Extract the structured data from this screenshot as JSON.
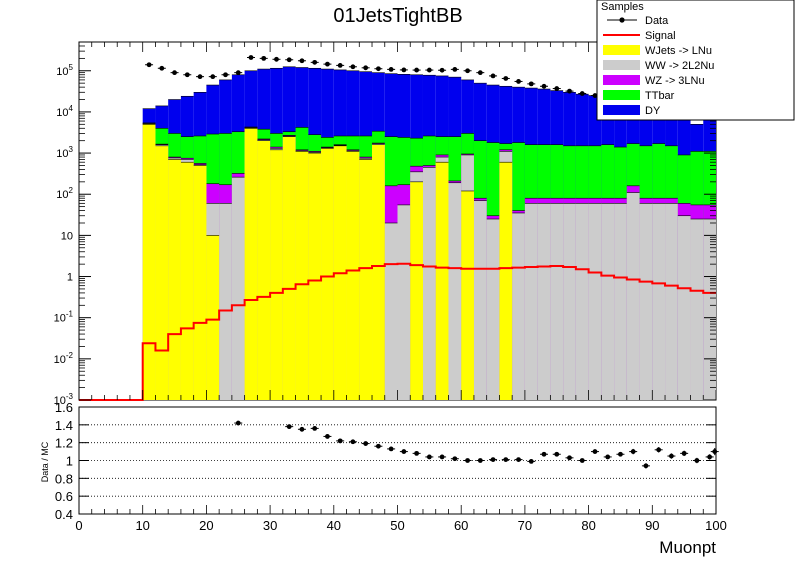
{
  "chart_data": [
    {
      "type": "stacked-histogram",
      "title": "01JetsTightBB",
      "xlabel": "",
      "ylabel": "",
      "log_y": true,
      "xlim": [
        0,
        100
      ],
      "ylim": [
        0.001,
        500000
      ],
      "bin_width": 2,
      "y_ticks": [
        {
          "v": 100000,
          "b": "10",
          "e": "5"
        },
        {
          "v": 10000,
          "b": "10",
          "e": "4"
        },
        {
          "v": 1000,
          "b": "10",
          "e": "3"
        },
        {
          "v": 100,
          "b": "10^2",
          "e": ""
        },
        {
          "v": 10,
          "b": "10",
          "e": ""
        },
        {
          "v": 1,
          "b": "1",
          "e": ""
        },
        {
          "v": 0.1,
          "b": "10",
          "e": "-1"
        },
        {
          "v": 0.01,
          "b": "10",
          "e": "-2"
        },
        {
          "v": 0.001,
          "b": "10",
          "e": "-3"
        }
      ],
      "legend": {
        "title": "Samples",
        "position": "top-right",
        "entries": [
          {
            "label": "Data",
            "kind": "marker",
            "color": "#000000"
          },
          {
            "label": "Signal",
            "kind": "line",
            "color": "#ff0000"
          },
          {
            "label": "WJets -> LNu",
            "kind": "fill",
            "color": "#ffff00"
          },
          {
            "label": "WW -> 2L2Nu",
            "kind": "fill",
            "color": "#cccccc"
          },
          {
            "label": "WZ -> 3LNu",
            "kind": "fill",
            "color": "#cc00ff"
          },
          {
            "label": "TTbar",
            "kind": "fill",
            "color": "#00ff00"
          },
          {
            "label": "DY",
            "kind": "fill",
            "color": "#0000ee"
          }
        ]
      },
      "bin_edges_x": [
        10,
        12,
        14,
        16,
        18,
        20,
        22,
        24,
        26,
        28,
        30,
        32,
        34,
        36,
        38,
        40,
        42,
        44,
        46,
        48,
        50,
        52,
        54,
        56,
        58,
        60,
        62,
        64,
        66,
        68,
        70,
        72,
        74,
        76,
        78,
        80,
        82,
        84,
        86,
        88,
        90,
        92,
        94,
        96,
        98,
        100
      ],
      "series": [
        {
          "name": "WJets -> LNu",
          "color": "#ffff00",
          "values": [
            5000,
            1500,
            500,
            600,
            400,
            3,
            0,
            0.001,
            2500,
            1000,
            700,
            1500,
            500,
            500,
            700,
            900,
            600,
            350,
            850,
            0,
            0,
            30,
            0,
            250,
            0,
            100,
            0,
            0,
            2,
            0,
            0,
            0,
            0,
            0,
            0,
            0,
            0,
            0,
            0,
            0,
            0,
            0,
            0,
            0,
            0
          ]
        },
        {
          "name": "WW -> 2L2Nu",
          "color": "#cccccc",
          "values": [
            0,
            0,
            0,
            0,
            0,
            35,
            0,
            60,
            0,
            0,
            0,
            0,
            0,
            0,
            0,
            0,
            0,
            0,
            0,
            0,
            0,
            50,
            0,
            0,
            0,
            100,
            0,
            0,
            0,
            0,
            0,
            0,
            0,
            0,
            0,
            0,
            0,
            0,
            0,
            0,
            0,
            0,
            0,
            0,
            0
          ]
        },
        {
          "name": "WZ -> 3LNu",
          "color": "#cc00ff",
          "values": [
            0,
            0,
            0,
            0,
            0,
            0,
            0,
            0,
            0,
            0,
            0,
            0,
            0,
            0,
            0,
            0,
            0,
            0,
            0,
            25,
            0,
            0,
            0,
            0,
            0,
            0,
            0,
            0,
            0,
            0,
            0,
            0,
            0,
            0,
            0,
            0,
            0,
            0,
            0,
            0,
            0,
            0,
            0,
            0,
            0
          ]
        },
        {
          "name": "TTbar",
          "color": "#00ff00",
          "values": [
            0,
            0,
            0,
            0,
            0,
            0,
            0,
            0,
            0,
            0,
            0,
            0,
            0,
            0,
            0,
            0,
            0,
            0,
            0,
            0,
            0,
            0,
            0,
            0,
            0,
            0,
            0,
            0,
            0,
            0,
            0,
            0,
            0,
            0,
            0,
            0,
            0,
            0,
            0,
            0,
            0,
            0,
            0,
            0,
            0
          ]
        },
        {
          "name": "DY",
          "color": "#0000ee",
          "values": [
            0,
            0,
            0,
            0,
            0,
            0,
            0,
            0,
            0,
            0,
            0,
            0,
            0,
            0,
            0,
            0,
            0,
            0,
            0,
            0,
            0,
            0,
            0,
            0,
            0,
            0,
            0,
            0,
            0,
            0,
            0,
            0,
            0,
            0,
            0,
            0,
            0,
            0,
            0,
            0,
            0,
            0,
            0,
            0,
            0
          ]
        }
      ],
      "stack_tops": {
        "wjets": [
          5000,
          1500,
          700,
          600,
          500,
          10,
          0,
          0,
          4000,
          2000,
          1200,
          2500,
          1100,
          1000,
          1300,
          1500,
          1100,
          700,
          1600,
          0,
          0,
          200,
          0,
          600,
          0,
          120,
          0,
          0,
          600,
          0,
          0,
          0,
          0,
          0,
          0,
          0,
          0,
          0,
          0,
          0,
          0,
          0,
          0,
          0,
          0
        ],
        "ww": [
          5200,
          1600,
          760,
          700,
          520,
          60,
          60,
          260,
          4100,
          2100,
          1300,
          2600,
          1150,
          1050,
          1350,
          1550,
          1150,
          750,
          1700,
          20,
          55,
          350,
          450,
          800,
          190,
          900,
          70,
          25,
          1100,
          35,
          60,
          60,
          60,
          60,
          60,
          60,
          60,
          60,
          110,
          60,
          60,
          60,
          30,
          25,
          25
        ],
        "wz": [
          5300,
          1650,
          800,
          750,
          560,
          180,
          170,
          320,
          4200,
          2200,
          1400,
          2700,
          1200,
          1100,
          1400,
          1600,
          1200,
          800,
          1750,
          160,
          170,
          480,
          500,
          900,
          210,
          950,
          80,
          30,
          1200,
          40,
          80,
          80,
          80,
          80,
          80,
          80,
          80,
          80,
          160,
          80,
          80,
          80,
          60,
          55,
          55
        ],
        "ttbar": [
          5400,
          4000,
          3000,
          2500,
          2600,
          2900,
          3000,
          3300,
          4300,
          3800,
          3000,
          3300,
          4200,
          2800,
          2400,
          2600,
          2600,
          2600,
          3400,
          2500,
          2400,
          2300,
          2600,
          2500,
          2500,
          3000,
          2000,
          1800,
          1700,
          1800,
          1600,
          1600,
          1600,
          1500,
          1500,
          1500,
          1600,
          1400,
          1700,
          1500,
          1700,
          1500,
          900,
          1100,
          1100
        ],
        "dy": [
          12000,
          14000,
          20000,
          24000,
          30000,
          45000,
          60000,
          80000,
          100000,
          110000,
          115000,
          125000,
          120000,
          115000,
          110000,
          105000,
          100000,
          95000,
          90000,
          85000,
          82000,
          80000,
          78000,
          75000,
          70000,
          60000,
          50000,
          45000,
          42000,
          40000,
          38000,
          36000,
          33000,
          30000,
          27000,
          25000,
          22000,
          20000,
          18000,
          16000,
          14000,
          12000,
          8000,
          5000,
          7000
        ]
      },
      "data_points": [
        {
          "x": 11,
          "y": 140000
        },
        {
          "x": 13,
          "y": 115000
        },
        {
          "x": 15,
          "y": 90000
        },
        {
          "x": 17,
          "y": 80000
        },
        {
          "x": 19,
          "y": 72000
        },
        {
          "x": 21,
          "y": 72000
        },
        {
          "x": 23,
          "y": 80000
        },
        {
          "x": 25,
          "y": 90000
        },
        {
          "x": 27,
          "y": 210000
        },
        {
          "x": 29,
          "y": 200000
        },
        {
          "x": 31,
          "y": 190000
        },
        {
          "x": 33,
          "y": 185000
        },
        {
          "x": 35,
          "y": 175000
        },
        {
          "x": 37,
          "y": 160000
        },
        {
          "x": 39,
          "y": 145000
        },
        {
          "x": 41,
          "y": 135000
        },
        {
          "x": 43,
          "y": 125000
        },
        {
          "x": 45,
          "y": 118000
        },
        {
          "x": 47,
          "y": 112000
        },
        {
          "x": 49,
          "y": 108000
        },
        {
          "x": 51,
          "y": 105000
        },
        {
          "x": 53,
          "y": 104000
        },
        {
          "x": 55,
          "y": 104000
        },
        {
          "x": 57,
          "y": 103000
        },
        {
          "x": 59,
          "y": 108000
        },
        {
          "x": 61,
          "y": 100000
        },
        {
          "x": 63,
          "y": 90000
        },
        {
          "x": 65,
          "y": 75000
        },
        {
          "x": 67,
          "y": 65000
        },
        {
          "x": 69,
          "y": 55000
        },
        {
          "x": 71,
          "y": 48000
        },
        {
          "x": 73,
          "y": 42000
        },
        {
          "x": 75,
          "y": 37000
        },
        {
          "x": 77,
          "y": 32000
        },
        {
          "x": 79,
          "y": 28000
        },
        {
          "x": 81,
          "y": 25000
        },
        {
          "x": 83,
          "y": 22000
        },
        {
          "x": 85,
          "y": 20000
        },
        {
          "x": 87,
          "y": 18000
        },
        {
          "x": 89,
          "y": 17000
        },
        {
          "x": 91,
          "y": 15000
        },
        {
          "x": 93,
          "y": 14000
        },
        {
          "x": 95,
          "y": 12000
        },
        {
          "x": 97,
          "y": 11000
        },
        {
          "x": 99,
          "y": 10000
        }
      ],
      "signal_line": {
        "name": "Signal",
        "color": "#ff0000",
        "bins": [
          [
            0,
            0.001
          ],
          [
            2,
            0.001
          ],
          [
            4,
            0.001
          ],
          [
            6,
            0.001
          ],
          [
            8,
            0.001
          ],
          [
            10,
            0.024
          ],
          [
            12,
            0.016
          ],
          [
            14,
            0.04
          ],
          [
            16,
            0.055
          ],
          [
            18,
            0.075
          ],
          [
            20,
            0.09
          ],
          [
            22,
            0.15
          ],
          [
            24,
            0.2
          ],
          [
            26,
            0.27
          ],
          [
            28,
            0.32
          ],
          [
            30,
            0.4
          ],
          [
            32,
            0.5
          ],
          [
            34,
            0.65
          ],
          [
            36,
            0.8
          ],
          [
            38,
            1.0
          ],
          [
            40,
            1.2
          ],
          [
            42,
            1.4
          ],
          [
            44,
            1.6
          ],
          [
            46,
            1.8
          ],
          [
            48,
            2.0
          ],
          [
            50,
            2.05
          ],
          [
            52,
            1.9
          ],
          [
            54,
            1.75
          ],
          [
            56,
            1.65
          ],
          [
            58,
            1.6
          ],
          [
            60,
            1.55
          ],
          [
            62,
            1.55
          ],
          [
            64,
            1.55
          ],
          [
            66,
            1.6
          ],
          [
            68,
            1.65
          ],
          [
            70,
            1.7
          ],
          [
            72,
            1.75
          ],
          [
            74,
            1.8
          ],
          [
            76,
            1.7
          ],
          [
            78,
            1.5
          ],
          [
            80,
            1.25
          ],
          [
            82,
            1.05
          ],
          [
            84,
            0.95
          ],
          [
            86,
            0.85
          ],
          [
            88,
            0.75
          ],
          [
            90,
            0.68
          ],
          [
            92,
            0.6
          ],
          [
            94,
            0.52
          ],
          [
            96,
            0.45
          ],
          [
            98,
            0.4
          ]
        ]
      }
    },
    {
      "type": "scatter",
      "title": "",
      "xlabel": "Muonpt",
      "ylabel": "Data / MC",
      "xlim": [
        0,
        100
      ],
      "ylim": [
        0.4,
        1.6
      ],
      "grid": "dotted-horizontal",
      "x_ticks": [
        "0",
        "10",
        "20",
        "30",
        "40",
        "50",
        "60",
        "70",
        "80",
        "90",
        "100"
      ],
      "y_ticks": [
        "0.4",
        "0.6",
        "0.8",
        "1",
        "1.2",
        "1.4",
        "1.6"
      ],
      "points": [
        {
          "x": 25,
          "y": 1.42,
          "e": 0.01
        },
        {
          "x": 33,
          "y": 1.38,
          "e": 0.01
        },
        {
          "x": 35,
          "y": 1.35,
          "e": 0.01
        },
        {
          "x": 37,
          "y": 1.36,
          "e": 0.01
        },
        {
          "x": 39,
          "y": 1.27,
          "e": 0.01
        },
        {
          "x": 41,
          "y": 1.22,
          "e": 0.01
        },
        {
          "x": 43,
          "y": 1.21,
          "e": 0.01
        },
        {
          "x": 45,
          "y": 1.19,
          "e": 0.01
        },
        {
          "x": 47,
          "y": 1.16,
          "e": 0.01
        },
        {
          "x": 49,
          "y": 1.13,
          "e": 0.01
        },
        {
          "x": 51,
          "y": 1.1,
          "e": 0.01
        },
        {
          "x": 53,
          "y": 1.08,
          "e": 0.01
        },
        {
          "x": 55,
          "y": 1.04,
          "e": 0.01
        },
        {
          "x": 57,
          "y": 1.04,
          "e": 0.01
        },
        {
          "x": 59,
          "y": 1.02,
          "e": 0.01
        },
        {
          "x": 61,
          "y": 1.0,
          "e": 0.01
        },
        {
          "x": 63,
          "y": 1.0,
          "e": 0.01
        },
        {
          "x": 65,
          "y": 1.01,
          "e": 0.01
        },
        {
          "x": 67,
          "y": 1.01,
          "e": 0.01
        },
        {
          "x": 69,
          "y": 1.01,
          "e": 0.01
        },
        {
          "x": 71,
          "y": 0.99,
          "e": 0.01
        },
        {
          "x": 73,
          "y": 1.07,
          "e": 0.02
        },
        {
          "x": 75,
          "y": 1.07,
          "e": 0.02
        },
        {
          "x": 77,
          "y": 1.03,
          "e": 0.02
        },
        {
          "x": 79,
          "y": 1.0,
          "e": 0.02
        },
        {
          "x": 81,
          "y": 1.1,
          "e": 0.02
        },
        {
          "x": 83,
          "y": 1.04,
          "e": 0.02
        },
        {
          "x": 85,
          "y": 1.07,
          "e": 0.02
        },
        {
          "x": 87,
          "y": 1.1,
          "e": 0.03
        },
        {
          "x": 89,
          "y": 0.94,
          "e": 0.03
        },
        {
          "x": 91,
          "y": 1.12,
          "e": 0.03
        },
        {
          "x": 93,
          "y": 1.05,
          "e": 0.03
        },
        {
          "x": 95,
          "y": 1.08,
          "e": 0.03
        },
        {
          "x": 97,
          "y": 1.0,
          "e": 0.03
        },
        {
          "x": 99,
          "y": 1.04,
          "e": 0.03
        },
        {
          "x": 99.8,
          "y": 1.1,
          "e": 0.04
        }
      ]
    }
  ]
}
